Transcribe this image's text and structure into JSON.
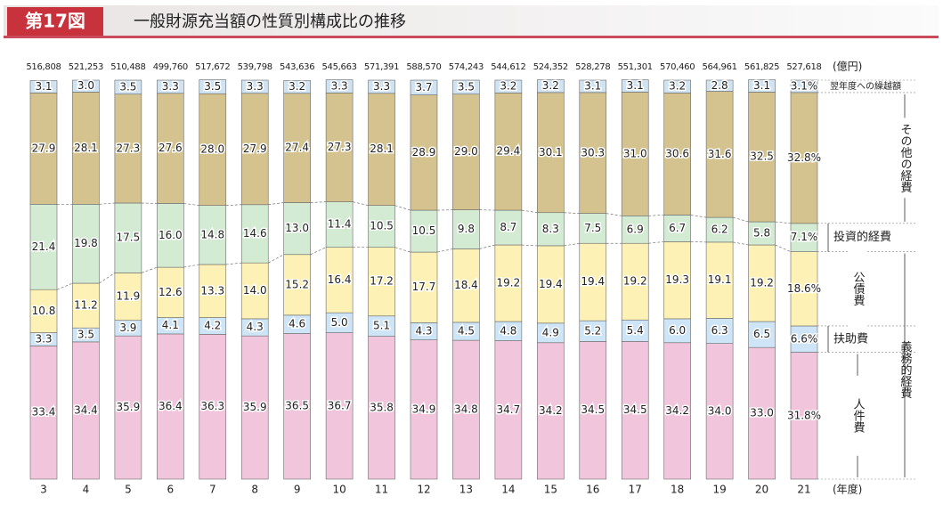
{
  "chart_data": {
    "type": "stacked_bar_100",
    "figure": "第17図",
    "title": "一般財源充当額の性質別構成比の推移",
    "x_unit": "(年度)",
    "group_label": "義務的経費",
    "categories": [
      "3",
      "4",
      "5",
      "6",
      "7",
      "8",
      "9",
      "10",
      "11",
      "12",
      "13",
      "14",
      "15",
      "16",
      "17",
      "18",
      "19",
      "20",
      "21"
    ],
    "ylim": [
      0,
      100
    ],
    "totals": {
      "unit": "(億円)",
      "values": [
        516808,
        521253,
        510488,
        499760,
        517672,
        539798,
        543636,
        545663,
        571391,
        588570,
        574243,
        544612,
        524352,
        528278,
        551301,
        570460,
        564961,
        561825,
        527618
      ],
      "value_labels": [
        "516,808",
        "521,253",
        "510,488",
        "499,760",
        "517,672",
        "539,798",
        "543,636",
        "545,663",
        "571,391",
        "588,570",
        "574,243",
        "544,612",
        "524,352",
        "528,278",
        "551,301",
        "570,460",
        "564,961",
        "561,825",
        "527,618"
      ]
    },
    "series": [
      {
        "name": "人件費",
        "color": "#f1c6dc",
        "values": [
          33.4,
          34.4,
          35.9,
          36.4,
          36.3,
          35.9,
          36.5,
          36.7,
          35.8,
          34.9,
          34.8,
          34.7,
          34.2,
          34.5,
          34.5,
          34.2,
          34.0,
          33.0,
          31.8
        ],
        "value_labels": [
          "33.4",
          "34.4",
          "35.9",
          "36.4",
          "36.3",
          "35.9",
          "36.5",
          "36.7",
          "35.8",
          "34.9",
          "34.8",
          "34.7",
          "34.2",
          "34.5",
          "34.5",
          "34.2",
          "34.0",
          "33.0",
          "31.8%"
        ]
      },
      {
        "name": "扶助費",
        "color": "#cde5f6",
        "values": [
          3.3,
          3.5,
          3.9,
          4.1,
          4.2,
          4.3,
          4.6,
          5.0,
          5.1,
          4.3,
          4.5,
          4.8,
          4.9,
          5.2,
          5.4,
          6.0,
          6.3,
          6.5,
          6.6
        ],
        "value_labels": [
          "3.3",
          "3.5",
          "3.9",
          "4.1",
          "4.2",
          "4.3",
          "4.6",
          "5.0",
          "5.1",
          "4.3",
          "4.5",
          "4.8",
          "4.9",
          "5.2",
          "5.4",
          "6.0",
          "6.3",
          "6.5",
          "6.6%"
        ]
      },
      {
        "name": "公債費",
        "color": "#fdf1b5",
        "values": [
          10.8,
          11.2,
          11.9,
          12.6,
          13.3,
          14.0,
          15.2,
          16.4,
          17.2,
          17.7,
          18.4,
          19.2,
          19.4,
          19.4,
          19.2,
          19.3,
          19.1,
          19.2,
          18.6
        ],
        "value_labels": [
          "10.8",
          "11.2",
          "11.9",
          "12.6",
          "13.3",
          "14.0",
          "15.2",
          "16.4",
          "17.2",
          "17.7",
          "18.4",
          "19.2",
          "19.4",
          "19.4",
          "19.2",
          "19.3",
          "19.1",
          "19.2",
          "18.6%"
        ]
      },
      {
        "name": "投資的経費",
        "color": "#d3ebd3",
        "values": [
          21.4,
          19.8,
          17.5,
          16.0,
          14.8,
          14.6,
          13.0,
          11.4,
          10.5,
          10.5,
          9.8,
          8.7,
          8.3,
          7.5,
          6.9,
          6.7,
          6.2,
          5.8,
          7.1
        ],
        "value_labels": [
          "21.4",
          "19.8",
          "17.5",
          "16.0",
          "14.8",
          "14.6",
          "13.0",
          "11.4",
          "10.5",
          "10.5",
          "9.8",
          "8.7",
          "8.3",
          "7.5",
          "6.9",
          "6.7",
          "6.2",
          "5.8",
          "7.1%"
        ]
      },
      {
        "name": "その他の経費",
        "color": "#d4c38f",
        "values": [
          27.9,
          28.1,
          27.3,
          27.6,
          28.0,
          27.9,
          27.4,
          27.3,
          28.1,
          28.9,
          29.0,
          29.4,
          30.1,
          30.3,
          31.0,
          30.6,
          31.6,
          32.5,
          32.8
        ],
        "value_labels": [
          "27.9",
          "28.1",
          "27.3",
          "27.6",
          "28.0",
          "27.9",
          "27.4",
          "27.3",
          "28.1",
          "28.9",
          "29.0",
          "29.4",
          "30.1",
          "30.3",
          "31.0",
          "30.6",
          "31.6",
          "32.5",
          "32.8%"
        ]
      },
      {
        "name": "翌年度への繰越額",
        "color": "#cfe3f3",
        "values": [
          3.1,
          3.0,
          3.5,
          3.3,
          3.5,
          3.3,
          3.2,
          3.3,
          3.3,
          3.7,
          3.5,
          3.2,
          3.2,
          3.1,
          3.1,
          3.2,
          2.8,
          3.1,
          3.1
        ],
        "value_labels": [
          "3.1",
          "3.0",
          "3.5",
          "3.3",
          "3.5",
          "3.3",
          "3.2",
          "3.3",
          "3.3",
          "3.7",
          "3.5",
          "3.2",
          "3.2",
          "3.1",
          "3.1",
          "3.2",
          "2.8",
          "3.1",
          "3.1%"
        ]
      }
    ]
  }
}
